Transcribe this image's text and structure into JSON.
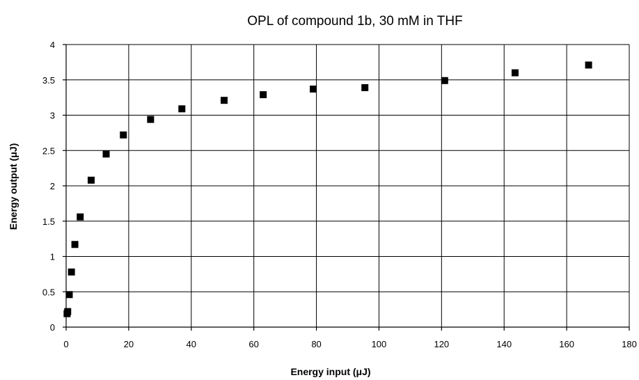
{
  "chart_data": {
    "type": "scatter",
    "title": "OPL of compound 1b, 30 mM in THF",
    "xlabel": "Energy input  (μJ)",
    "ylabel": "Energy output  (μJ)",
    "xlim": [
      0,
      180
    ],
    "ylim": [
      0,
      4
    ],
    "xticks": [
      0,
      20,
      40,
      60,
      80,
      100,
      120,
      140,
      160,
      180
    ],
    "yticks": [
      0,
      0.5,
      1,
      1.5,
      2,
      2.5,
      3,
      3.5,
      4
    ],
    "x_tick_labels": [
      "0",
      "20",
      "40",
      "60",
      "80",
      "100",
      "120",
      "140",
      "160",
      "180"
    ],
    "y_tick_labels": [
      "0",
      "0.5",
      "1",
      "1.5",
      "2",
      "2.5",
      "3",
      "3.5",
      "4"
    ],
    "grid": true,
    "legend": "none",
    "marker": "square",
    "marker_color": "#000000",
    "series": [
      {
        "x": [
          0.3,
          0.5,
          1.0,
          1.7,
          2.8,
          4.5,
          8.0,
          12.8,
          18.3,
          27.0,
          37.0,
          50.5,
          63.0,
          79.0,
          95.5,
          121.0,
          143.5,
          167.0
        ],
        "y": [
          0.19,
          0.22,
          0.46,
          0.78,
          1.17,
          1.56,
          2.08,
          2.45,
          2.72,
          2.94,
          3.09,
          3.21,
          3.29,
          3.37,
          3.39,
          3.49,
          3.6,
          3.71
        ]
      }
    ]
  }
}
